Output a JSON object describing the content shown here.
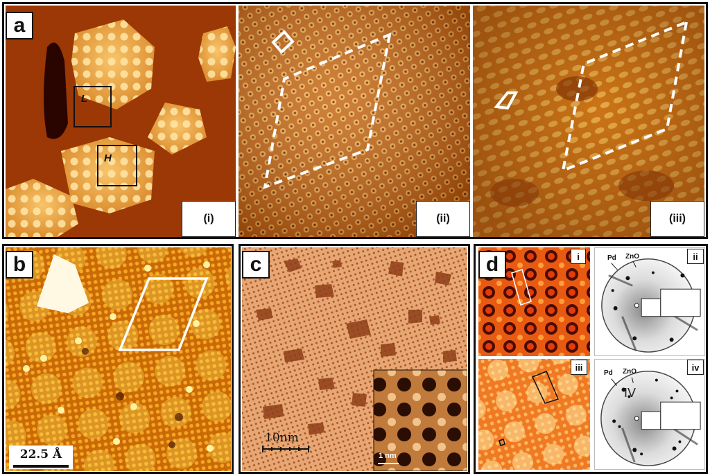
{
  "panels": {
    "a": {
      "label": "a",
      "sub": [
        "(i)",
        "(ii)",
        "(iii)"
      ],
      "regions": {
        "low": "L",
        "high": "H"
      }
    },
    "b": {
      "label": "b",
      "scale_bar": "22.5 Å"
    },
    "c": {
      "label": "c",
      "scale_bar": "10nm",
      "inset_scale_bar": "1 nm"
    },
    "d": {
      "label": "d",
      "sub": [
        "i",
        "ii",
        "iii",
        "iv"
      ],
      "leed_labels_top": {
        "pd": "Pd",
        "zno": "ZnO"
      },
      "leed_labels_bottom": {
        "pd": "Pd",
        "zno": "ZnO",
        "marker": "IV"
      }
    }
  },
  "colors": {
    "stm_dark": "#5a1a00",
    "stm_mid": "#c8650a",
    "stm_bright": "#ffd060",
    "panel_c_bg": "#e7a774",
    "leed_bg": "#f2f2f2"
  }
}
